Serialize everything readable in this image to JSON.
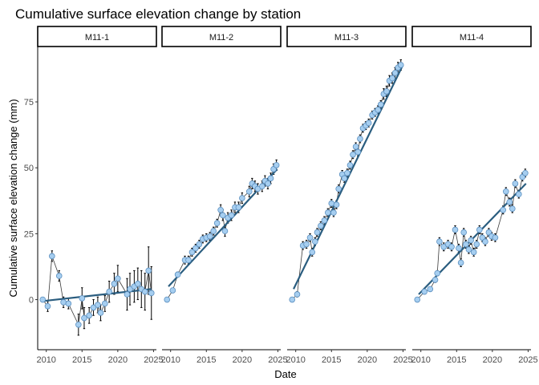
{
  "chart_data": {
    "type": "scatter",
    "title": "Cumulative surface elevation change by station",
    "xlabel": "Date",
    "ylabel": "Cumulative surface elevation change (mm)",
    "x_ticks": [
      2010,
      2015,
      2020,
      2025
    ],
    "y_ticks": [
      0,
      25,
      50,
      75
    ],
    "xlim": [
      2008.8,
      2025.4
    ],
    "ylim": [
      -19,
      96
    ],
    "grid": false,
    "colors": {
      "point_fill": "#a6cef0",
      "point_stroke": "#5b8fbf",
      "connect_line": "#3a3a3a",
      "trend_line": "#2a5d7f",
      "error_bar": "#000000"
    },
    "panels": [
      {
        "name": "M11-1",
        "trend": {
          "x": [
            2009.7,
            2024.7
          ],
          "y": [
            -0.5,
            4.0
          ]
        },
        "points": [
          [
            2009.5,
            0,
            0
          ],
          [
            2010.2,
            -2.5,
            2
          ],
          [
            2010.8,
            16.5,
            2
          ],
          [
            2011.8,
            9,
            2
          ],
          [
            2012.4,
            -1,
            2
          ],
          [
            2013.1,
            -1.5,
            2
          ],
          [
            2014.5,
            -9.5,
            4
          ],
          [
            2015.0,
            0.5,
            4
          ],
          [
            2015.3,
            -7,
            4
          ],
          [
            2016.0,
            -6,
            3
          ],
          [
            2016.6,
            -3,
            3
          ],
          [
            2017.2,
            -2,
            3
          ],
          [
            2017.6,
            -5,
            3
          ],
          [
            2018.2,
            -1.5,
            3
          ],
          [
            2018.8,
            3,
            4
          ],
          [
            2019.5,
            6,
            4
          ],
          [
            2020.0,
            8,
            5
          ],
          [
            2021.3,
            2,
            6
          ],
          [
            2021.7,
            4,
            6
          ],
          [
            2022.3,
            5,
            6
          ],
          [
            2022.8,
            6,
            6
          ],
          [
            2023.3,
            4,
            7
          ],
          [
            2023.8,
            3,
            7
          ],
          [
            2024.3,
            11,
            9
          ],
          [
            2024.7,
            2.5,
            10
          ]
        ]
      },
      {
        "name": "M11-2",
        "trend": {
          "x": [
            2009.7,
            2024.9
          ],
          "y": [
            5,
            49.5
          ]
        },
        "points": [
          [
            2009.5,
            0,
            0
          ],
          [
            2010.3,
            3.5,
            0.5
          ],
          [
            2011.0,
            9.5,
            1
          ],
          [
            2012.0,
            15,
            1.5
          ],
          [
            2012.5,
            15,
            1.5
          ],
          [
            2013.0,
            18,
            1.5
          ],
          [
            2013.5,
            19.5,
            1.5
          ],
          [
            2014.0,
            21,
            1.5
          ],
          [
            2014.5,
            23,
            1.5
          ],
          [
            2015.0,
            23.5,
            1.5
          ],
          [
            2015.5,
            24,
            1.5
          ],
          [
            2016.0,
            26,
            1.5
          ],
          [
            2016.5,
            29,
            1.5
          ],
          [
            2017.0,
            34,
            2
          ],
          [
            2017.3,
            32,
            2
          ],
          [
            2017.6,
            26,
            2
          ],
          [
            2018.0,
            31,
            2
          ],
          [
            2018.5,
            32,
            2
          ],
          [
            2019.0,
            35,
            2
          ],
          [
            2019.5,
            35,
            2
          ],
          [
            2020.0,
            38.5,
            2
          ],
          [
            2021.0,
            41,
            2
          ],
          [
            2021.4,
            44,
            2
          ],
          [
            2021.8,
            43,
            2
          ],
          [
            2022.2,
            42,
            2
          ],
          [
            2022.8,
            43,
            2
          ],
          [
            2023.2,
            45,
            2
          ],
          [
            2023.6,
            44,
            2
          ],
          [
            2024.0,
            46,
            2
          ],
          [
            2024.4,
            49.5,
            2
          ],
          [
            2024.8,
            51,
            2
          ]
        ]
      },
      {
        "name": "M11-3",
        "trend": {
          "x": [
            2009.7,
            2024.9
          ],
          "y": [
            4,
            88.5
          ]
        },
        "points": [
          [
            2009.5,
            0,
            0
          ],
          [
            2010.2,
            2,
            1
          ],
          [
            2011.0,
            20.5,
            1.5
          ],
          [
            2011.5,
            21,
            1.5
          ],
          [
            2012.0,
            23.5,
            1.5
          ],
          [
            2012.3,
            18,
            1.5
          ],
          [
            2012.7,
            22,
            1.5
          ],
          [
            2013.0,
            25.5,
            1.5
          ],
          [
            2013.5,
            28,
            1.5
          ],
          [
            2014.0,
            30,
            1.5
          ],
          [
            2014.5,
            33,
            1.5
          ],
          [
            2015.0,
            36.5,
            1.5
          ],
          [
            2015.3,
            33,
            1.5
          ],
          [
            2015.7,
            36,
            1.5
          ],
          [
            2016.0,
            42,
            1.5
          ],
          [
            2016.5,
            47.5,
            1.5
          ],
          [
            2016.8,
            46,
            1.5
          ],
          [
            2017.2,
            48,
            1.5
          ],
          [
            2017.6,
            51,
            1.5
          ],
          [
            2018.0,
            55,
            1.5
          ],
          [
            2018.4,
            58,
            1.5
          ],
          [
            2018.7,
            56,
            1.5
          ],
          [
            2019.0,
            61,
            1.5
          ],
          [
            2019.4,
            65,
            1.5
          ],
          [
            2019.8,
            66,
            1.5
          ],
          [
            2020.2,
            67,
            1.5
          ],
          [
            2020.7,
            70,
            1.5
          ],
          [
            2021.1,
            71,
            1.5
          ],
          [
            2021.5,
            72,
            1.5
          ],
          [
            2021.9,
            74,
            1.5
          ],
          [
            2022.3,
            78,
            2
          ],
          [
            2022.7,
            79,
            2
          ],
          [
            2023.1,
            83,
            2
          ],
          [
            2023.5,
            84,
            2
          ],
          [
            2023.9,
            86,
            2
          ],
          [
            2024.3,
            88,
            2
          ],
          [
            2024.7,
            89,
            2
          ]
        ]
      },
      {
        "name": "M11-4",
        "trend": {
          "x": [
            2009.7,
            2024.7
          ],
          "y": [
            2,
            44
          ]
        },
        "points": [
          [
            2009.5,
            0,
            0
          ],
          [
            2010.5,
            3,
            0.5
          ],
          [
            2011.3,
            4,
            0.5
          ],
          [
            2012.0,
            7.5,
            1
          ],
          [
            2012.3,
            10,
            1
          ],
          [
            2012.6,
            22,
            1.5
          ],
          [
            2013.2,
            20,
            1.5
          ],
          [
            2013.8,
            21,
            1.5
          ],
          [
            2014.3,
            20,
            1.5
          ],
          [
            2014.8,
            26.5,
            1.5
          ],
          [
            2015.3,
            19.5,
            1.5
          ],
          [
            2015.6,
            14,
            1.5
          ],
          [
            2016.0,
            25.5,
            1.5
          ],
          [
            2016.3,
            21,
            1.5
          ],
          [
            2016.7,
            19,
            1.5
          ],
          [
            2017.0,
            22.5,
            1.5
          ],
          [
            2017.4,
            18,
            1.5
          ],
          [
            2017.8,
            21,
            1.5
          ],
          [
            2018.2,
            26.5,
            1.5
          ],
          [
            2018.6,
            23.5,
            1.5
          ],
          [
            2019.0,
            22,
            1.5
          ],
          [
            2019.5,
            25.5,
            1.5
          ],
          [
            2019.9,
            24,
            1.5
          ],
          [
            2020.4,
            23.5,
            1.5
          ],
          [
            2021.5,
            34,
            1.5
          ],
          [
            2021.9,
            41,
            1.5
          ],
          [
            2022.4,
            37,
            1.5
          ],
          [
            2022.8,
            34.5,
            1.5
          ],
          [
            2023.2,
            44,
            1.5
          ],
          [
            2023.7,
            40,
            1.5
          ],
          [
            2024.2,
            46.5,
            1.5
          ],
          [
            2024.6,
            48,
            1.5
          ]
        ]
      }
    ]
  }
}
